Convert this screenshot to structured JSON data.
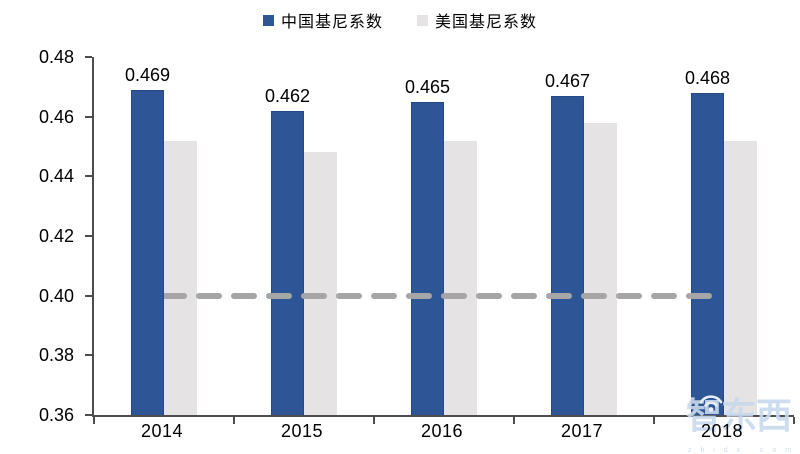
{
  "chart_data": {
    "type": "bar",
    "title": "",
    "categories": [
      "2014",
      "2015",
      "2016",
      "2017",
      "2018"
    ],
    "series": [
      {
        "name": "中国基尼系数",
        "color": "#2E5696",
        "values": [
          0.469,
          0.462,
          0.465,
          0.467,
          0.468
        ],
        "data_labels": [
          "0.469",
          "0.462",
          "0.465",
          "0.467",
          "0.468"
        ]
      },
      {
        "name": "美国基尼系数",
        "color": "#E5E3E4",
        "values": [
          0.452,
          0.448,
          0.452,
          0.458,
          0.452
        ],
        "data_labels": []
      }
    ],
    "reference_line": {
      "value": 0.4,
      "color": "#A6A6A6",
      "style": "dashed"
    },
    "ylim": [
      0.36,
      0.48
    ],
    "ytick_labels": [
      "0.48",
      "0.46",
      "0.44",
      "0.42",
      "0.40",
      "0.38",
      "0.36"
    ],
    "yticks": [
      0.48,
      0.46,
      0.44,
      0.42,
      0.4,
      0.38,
      0.36
    ],
    "xlabel": "",
    "ylabel": "",
    "grid": false,
    "legend_position": "top"
  },
  "watermark": {
    "text": "智东西",
    "subtext": "z h i d x . c o m",
    "icon": "wifi-icon",
    "text_color": "#C8D9ED",
    "icon_color": "#FFFFFF"
  },
  "colors": {
    "axis": "#4D4D4D",
    "background": "#FFFFFF",
    "label_text": "#000000"
  }
}
